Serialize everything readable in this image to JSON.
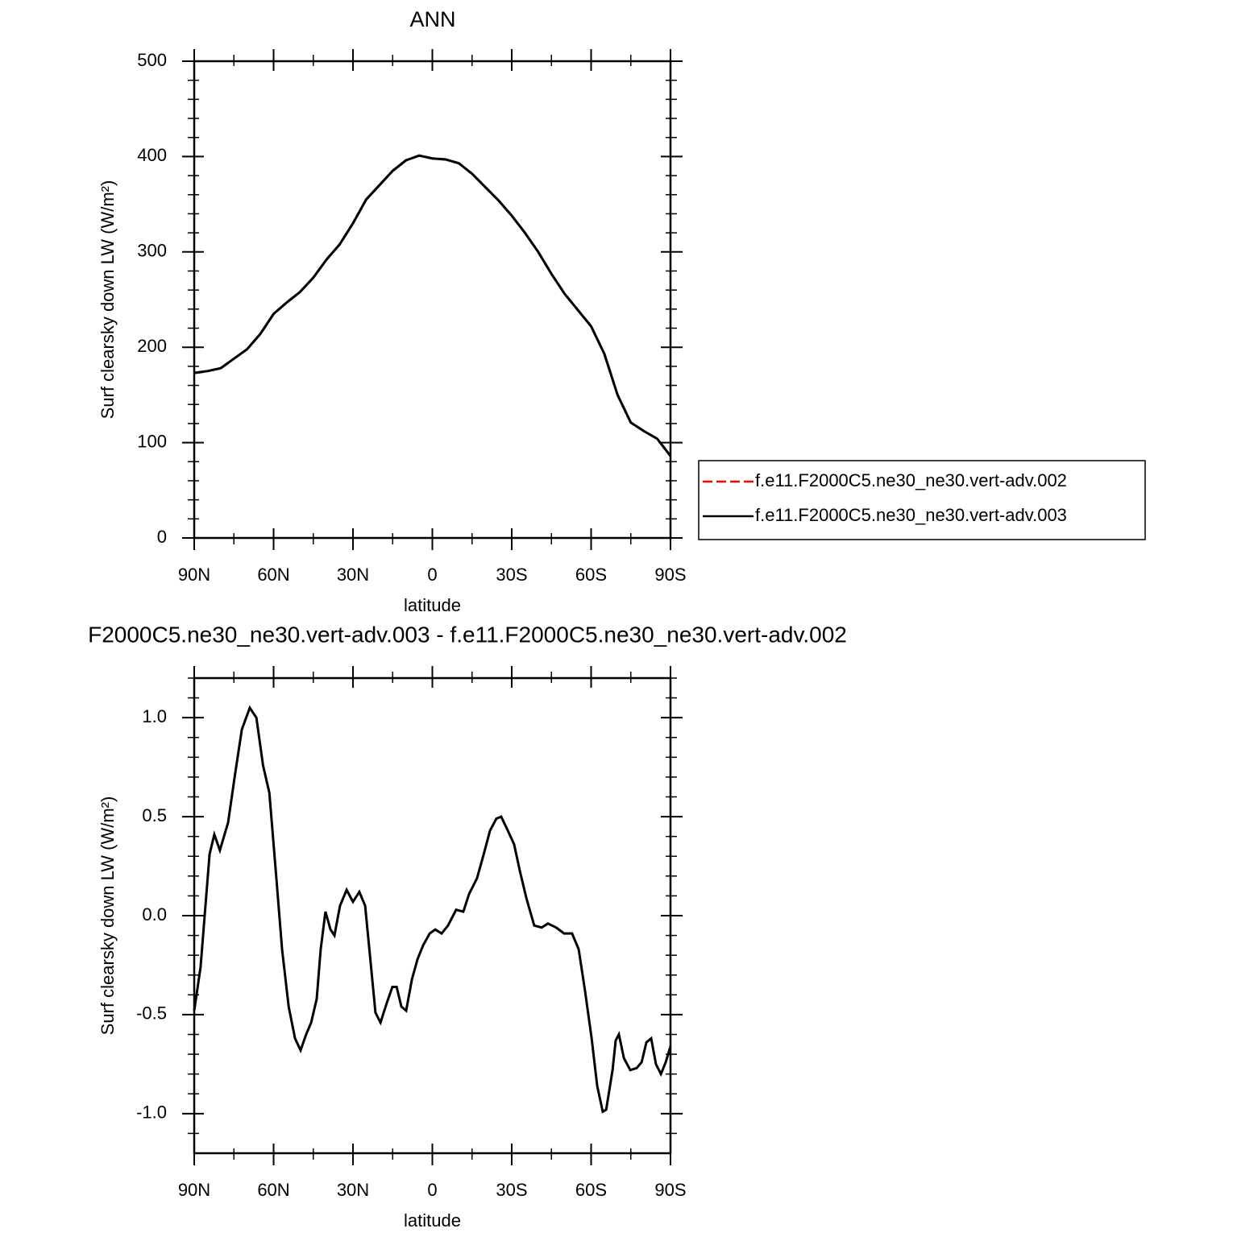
{
  "chart_data": [
    {
      "type": "line",
      "title": "ANN",
      "xlabel": "latitude",
      "ylabel": "Surf clearsky down LW (W/m²)",
      "x": [
        90,
        85,
        80,
        75,
        70,
        65,
        60,
        55,
        50,
        45,
        40,
        35,
        30,
        25,
        20,
        15,
        10,
        5,
        0,
        -5,
        -10,
        -15,
        -20,
        -25,
        -30,
        -35,
        -40,
        -45,
        -50,
        -55,
        -60,
        -65,
        -70,
        -75,
        -80,
        -85,
        -90
      ],
      "series": [
        {
          "name": "f.e11.F2000C5.ne30_ne30.vert-adv.002",
          "color": "#ff0000",
          "style": "dashed",
          "values": [
            173,
            175,
            178,
            188,
            198,
            214,
            235,
            247,
            258,
            273,
            292,
            308,
            330,
            355,
            370,
            385,
            396,
            401,
            398,
            397,
            393,
            382,
            368,
            354,
            338,
            320,
            300,
            277,
            256,
            239,
            222,
            193,
            150,
            121,
            112,
            104,
            86
          ]
        },
        {
          "name": "f.e11.F2000C5.ne30_ne30.vert-adv.003",
          "color": "#000000",
          "style": "solid",
          "values": [
            173,
            175,
            178,
            188,
            198,
            214,
            235,
            247,
            258,
            273,
            292,
            308,
            330,
            355,
            370,
            385,
            396,
            401,
            398,
            397,
            393,
            382,
            368,
            354,
            338,
            320,
            300,
            277,
            256,
            239,
            222,
            193,
            150,
            121,
            112,
            104,
            86
          ]
        }
      ],
      "xlim": [
        90,
        -90
      ],
      "xticks": [
        {
          "value": 90,
          "label": "90N"
        },
        {
          "value": 60,
          "label": "60N"
        },
        {
          "value": 30,
          "label": "30N"
        },
        0,
        {
          "value": -30,
          "label": "30S"
        },
        {
          "value": -60,
          "label": "60S"
        },
        {
          "value": -90,
          "label": "90S"
        }
      ],
      "ylim": [
        0,
        500
      ],
      "yticks": [
        0,
        100,
        200,
        300,
        400,
        500
      ],
      "legend": "right"
    },
    {
      "type": "line",
      "title": "F2000C5.ne30_ne30.vert-adv.003 - f.e11.F2000C5.ne30_ne30.vert-adv.002",
      "xlabel": "latitude",
      "ylabel": "Surf clearsky down LW (W/m²)",
      "x": [
        90,
        87.6,
        84.2,
        82.4,
        80.3,
        77.2,
        74.5,
        72,
        69,
        66.5,
        64,
        61.6,
        59.2,
        56.8,
        54.3,
        51.9,
        49.8,
        47.7,
        45.8,
        43.7,
        42.2,
        40.4,
        38.5,
        37,
        34.9,
        32.4,
        30,
        27.6,
        25.4,
        23.3,
        21.5,
        19.6,
        17.2,
        15.1,
        13.5,
        11.7,
        9.9,
        7.7,
        5.6,
        3.5,
        1.0,
        -1.1,
        -3.5,
        -5.9,
        -9,
        -11.7,
        -13.9,
        -16.9,
        -19.4,
        -21.8,
        -24.2,
        -26,
        -28.5,
        -30.9,
        -33,
        -35.5,
        -38.5,
        -41.3,
        -43.7,
        -46.8,
        -49.8,
        -52.8,
        -55.3,
        -57.7,
        -60.2,
        -62.3,
        -64.4,
        -65.7,
        -68.1,
        -69.3,
        -70.5,
        -72.4,
        -74.8,
        -77.2,
        -79.1,
        -80.9,
        -82.7,
        -84.5,
        -86.4,
        -88.2,
        -90
      ],
      "values": [
        -0.48,
        -0.26,
        0.31,
        0.41,
        0.33,
        0.47,
        0.72,
        0.94,
        1.05,
        1.0,
        0.76,
        0.62,
        0.23,
        -0.17,
        -0.46,
        -0.62,
        -0.68,
        -0.6,
        -0.54,
        -0.42,
        -0.17,
        0.02,
        -0.07,
        -0.1,
        0.05,
        0.13,
        0.07,
        0.12,
        0.05,
        -0.24,
        -0.49,
        -0.54,
        -0.44,
        -0.36,
        -0.36,
        -0.46,
        -0.48,
        -0.32,
        -0.22,
        -0.15,
        -0.09,
        -0.07,
        -0.09,
        -0.05,
        0.03,
        0.02,
        0.11,
        0.19,
        0.31,
        0.43,
        0.49,
        0.5,
        0.43,
        0.36,
        0.23,
        0.09,
        -0.05,
        -0.06,
        -0.04,
        -0.06,
        -0.09,
        -0.09,
        -0.17,
        -0.38,
        -0.62,
        -0.86,
        -0.99,
        -0.98,
        -0.78,
        -0.63,
        -0.6,
        -0.72,
        -0.78,
        -0.77,
        -0.74,
        -0.64,
        -0.62,
        -0.75,
        -0.8,
        -0.74,
        -0.66
      ],
      "color": "#000000",
      "xlim": [
        90,
        -90
      ],
      "xticks": [
        {
          "value": 90,
          "label": "90N"
        },
        {
          "value": 60,
          "label": "60N"
        },
        {
          "value": 30,
          "label": "30N"
        },
        0,
        {
          "value": -30,
          "label": "30S"
        },
        {
          "value": -60,
          "label": "60S"
        },
        {
          "value": -90,
          "label": "90S"
        }
      ],
      "ylim": [
        -1.2,
        1.2
      ],
      "yticks": [
        {
          "value": -1,
          "label": "-1.0"
        },
        {
          "value": -0.5,
          "label": "-0.5"
        },
        {
          "value": 0,
          "label": "0.0"
        },
        {
          "value": 0.5,
          "label": "0.5"
        },
        {
          "value": 1,
          "label": "1.0"
        }
      ]
    }
  ]
}
